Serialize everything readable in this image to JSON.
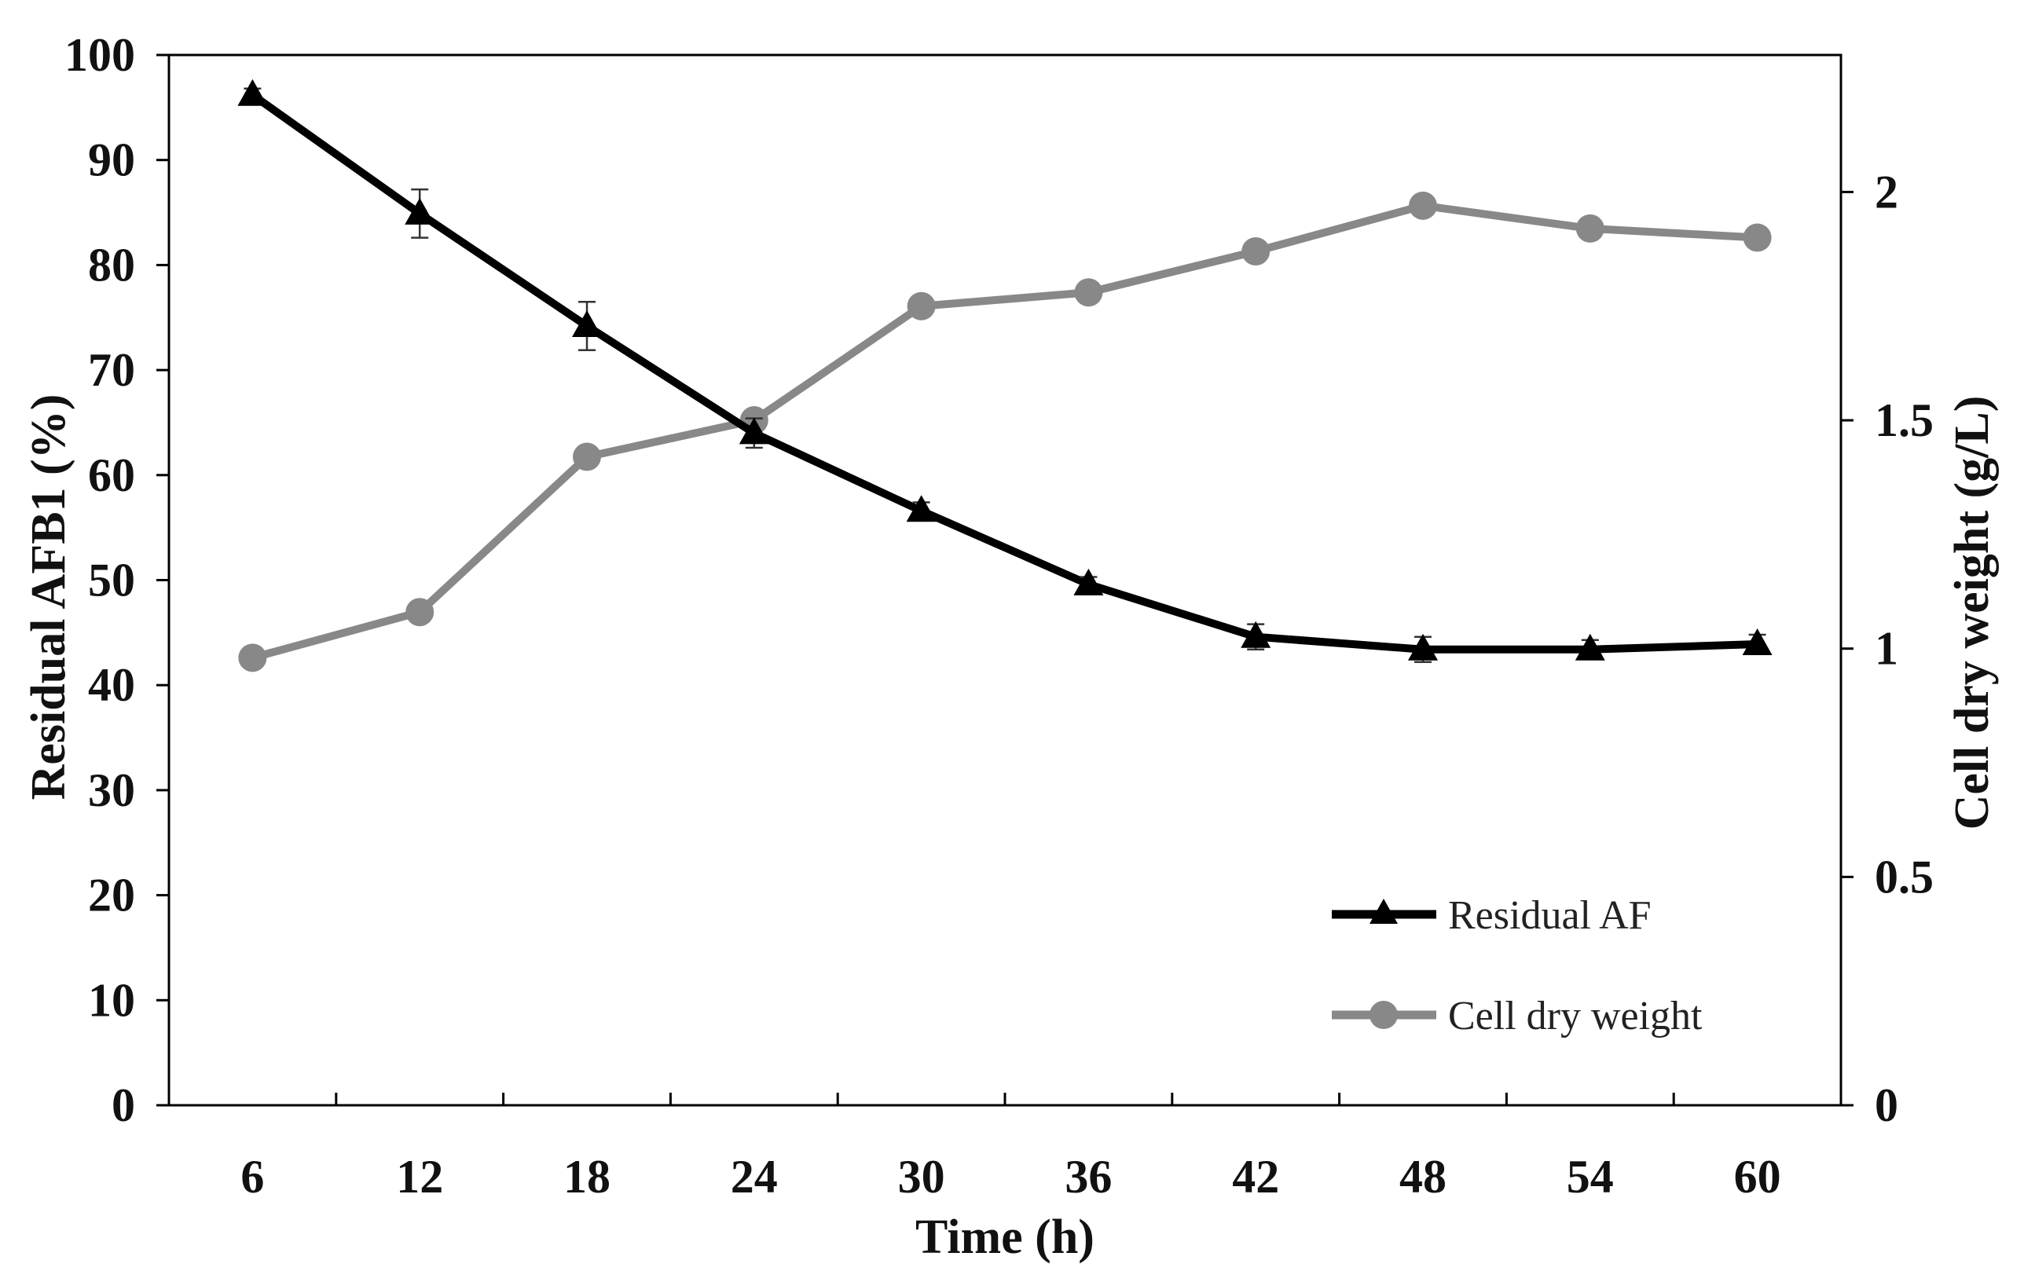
{
  "chart_data": {
    "type": "line",
    "title": "",
    "xlabel": "Time (h)",
    "ylabel_left": "Residual AFB1 (%)",
    "ylabel_right": "Cell dry weight (g/L)",
    "categories": [
      "6",
      "12",
      "18",
      "24",
      "30",
      "36",
      "42",
      "48",
      "54",
      "60"
    ],
    "y_left_ticks": [
      "0",
      "10",
      "20",
      "30",
      "40",
      "50",
      "60",
      "70",
      "80",
      "90",
      "100"
    ],
    "y_right_ticks": [
      "0",
      "0.5",
      "1",
      "1.5",
      "2"
    ],
    "ylim_left": [
      0,
      100
    ],
    "ylim_right": [
      0,
      2.3
    ],
    "grid": false,
    "legend_position": "bottom-right",
    "series": [
      {
        "name": "Residual AF",
        "axis": "left",
        "marker": "triangle",
        "color": "#000000",
        "values": [
          96.2,
          84.9,
          74.2,
          64.0,
          56.6,
          49.6,
          44.6,
          43.4,
          43.4,
          43.9
        ],
        "errors": [
          0.6,
          2.3,
          2.3,
          1.4,
          0.8,
          0.7,
          1.2,
          1.2,
          0.9,
          0.9
        ]
      },
      {
        "name": "Cell dry weight",
        "axis": "right",
        "marker": "circle",
        "color": "#888888",
        "values": [
          0.98,
          1.08,
          1.42,
          1.5,
          1.75,
          1.78,
          1.87,
          1.97,
          1.92,
          1.9
        ],
        "errors": [
          0.02,
          0.02,
          0.02,
          0.02,
          0.02,
          0.02,
          0.02,
          0.02,
          0.02,
          0.02
        ]
      }
    ]
  }
}
